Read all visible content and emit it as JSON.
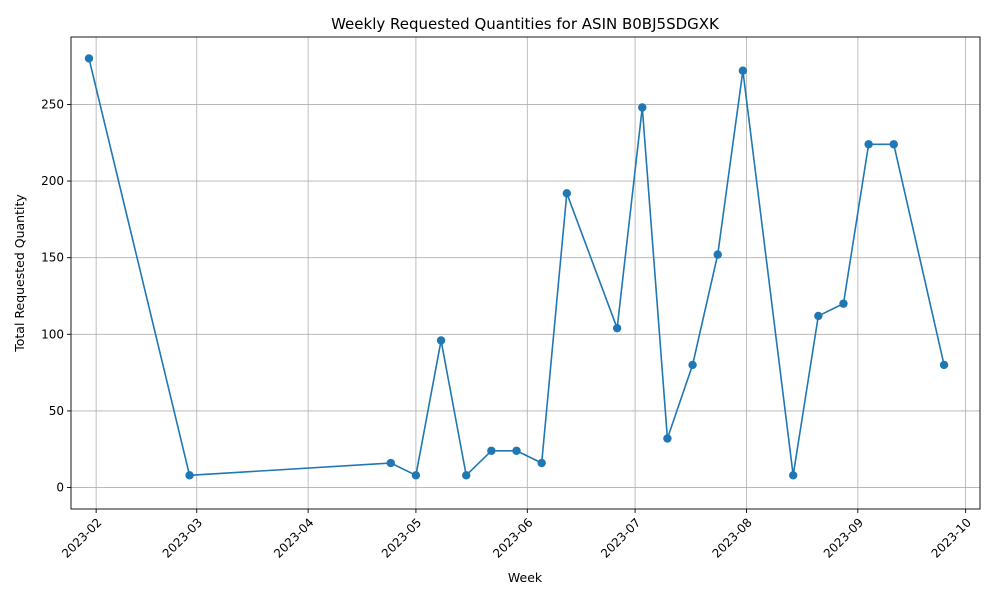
{
  "chart_data": {
    "type": "line",
    "title": "Weekly Requested Quantities for ASIN B0BJ5SDGXK",
    "xlabel": "Week",
    "ylabel": "Total Requested Quantity",
    "x_tick_labels": [
      "2023-02",
      "2023-03",
      "2023-04",
      "2023-05",
      "2023-06",
      "2023-07",
      "2023-08",
      "2023-09",
      "2023-10"
    ],
    "y_ticks": [
      0,
      50,
      100,
      150,
      200,
      250
    ],
    "ylim": [
      -14,
      294
    ],
    "xlim": [
      "2023-01-25",
      "2023-10-05"
    ],
    "grid": true,
    "line_color": "#1f77b4",
    "marker": "circle",
    "series": [
      {
        "x": [
          "2023-01-30",
          "2023-02-27",
          "2023-04-24",
          "2023-05-01",
          "2023-05-08",
          "2023-05-15",
          "2023-05-22",
          "2023-05-29",
          "2023-06-05",
          "2023-06-12",
          "2023-06-26",
          "2023-07-03",
          "2023-07-10",
          "2023-07-17",
          "2023-07-24",
          "2023-07-31",
          "2023-08-14",
          "2023-08-21",
          "2023-08-28",
          "2023-09-04",
          "2023-09-11",
          "2023-09-25"
        ],
        "values": [
          280,
          8,
          16,
          8,
          96,
          8,
          24,
          24,
          16,
          192,
          104,
          248,
          32,
          80,
          152,
          272,
          8,
          112,
          120,
          224,
          224,
          80
        ]
      }
    ]
  }
}
